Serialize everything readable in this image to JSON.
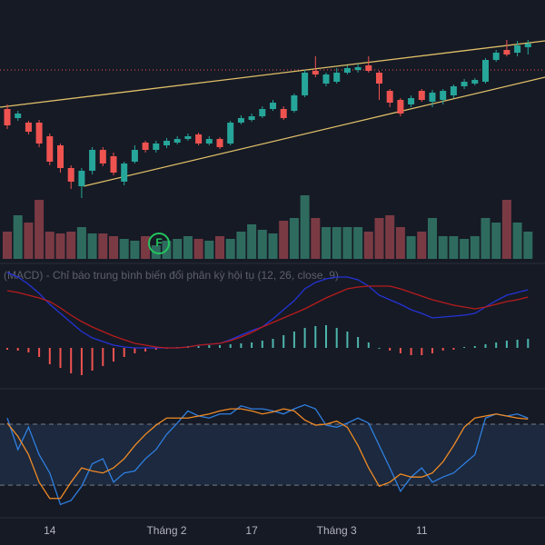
{
  "chart_data": [
    {
      "type": "candlestick",
      "up_color": "#26a69a",
      "down_color": "#ef5350",
      "ylim": [
        0,
        200
      ],
      "open": [
        110,
        100,
        95,
        95,
        80,
        70,
        45,
        25,
        42,
        65,
        58,
        30,
        52,
        73,
        65,
        70,
        73,
        77,
        82,
        72,
        77,
        72,
        95,
        98,
        102,
        110,
        110,
        108,
        125,
        152,
        138,
        140,
        150,
        153,
        158,
        150,
        130,
        120,
        115,
        130,
        118,
        120,
        125,
        135,
        138,
        140,
        164,
        175,
        172,
        178
      ],
      "high": [
        115,
        108,
        97,
        98,
        83,
        72,
        48,
        45,
        68,
        68,
        62,
        52,
        70,
        75,
        75,
        78,
        80,
        83,
        84,
        80,
        79,
        97,
        103,
        105,
        113,
        120,
        113,
        127,
        153,
        168,
        150,
        155,
        158,
        160,
        168,
        152,
        132,
        122,
        125,
        132,
        131,
        132,
        137,
        143,
        144,
        166,
        175,
        186,
        185,
        186
      ],
      "low": [
        88,
        97,
        82,
        68,
        48,
        40,
        22,
        12,
        38,
        47,
        37,
        26,
        50,
        62,
        62,
        67,
        71,
        75,
        70,
        70,
        66,
        70,
        93,
        96,
        100,
        108,
        98,
        106,
        123,
        145,
        135,
        138,
        148,
        150,
        150,
        120,
        112,
        102,
        112,
        118,
        112,
        115,
        122,
        132,
        136,
        138,
        162,
        168,
        168,
        170
      ],
      "close": [
        92,
        105,
        85,
        72,
        52,
        45,
        30,
        42,
        65,
        50,
        40,
        50,
        65,
        65,
        72,
        75,
        77,
        80,
        72,
        77,
        68,
        95,
        100,
        102,
        110,
        117,
        100,
        125,
        150,
        148,
        148,
        150,
        155,
        156,
        152,
        138,
        117,
        105,
        122,
        120,
        128,
        130,
        135,
        140,
        142,
        164,
        172,
        170,
        180,
        182
      ]
    },
    {
      "type": "bar",
      "up_color": "#2e6b5e",
      "down_color": "#7a3a44",
      "ylim": [
        0,
        75
      ],
      "annotation": "F",
      "values": [
        30,
        48,
        40,
        65,
        30,
        28,
        30,
        35,
        28,
        28,
        25,
        22,
        20,
        25,
        15,
        20,
        22,
        25,
        22,
        20,
        25,
        22,
        30,
        38,
        32,
        28,
        42,
        45,
        70,
        45,
        35,
        35,
        35,
        35,
        30,
        45,
        48,
        35,
        25,
        30,
        45,
        25,
        25,
        22,
        25,
        45,
        40,
        65,
        40,
        30
      ]
    },
    {
      "type": "macd",
      "title": "(MACD) - Chỉ báo trung bình biến đổi phân kỳ hội tụ (12, 26, close, 9)",
      "ylim": [
        -42,
        88
      ],
      "series": [
        {
          "color": "#2433d6",
          "values": [
            83,
            78,
            70,
            60,
            48,
            38,
            28,
            18,
            11,
            7,
            3,
            1,
            0,
            0,
            0,
            0,
            0,
            1,
            3,
            4,
            5,
            9,
            14,
            19,
            23,
            32,
            42,
            52,
            65,
            72,
            76,
            78,
            78,
            75,
            68,
            58,
            53,
            48,
            42,
            38,
            33,
            34,
            35,
            36,
            38,
            45,
            52,
            58,
            61,
            64
          ]
        },
        {
          "color": "#b71c1c",
          "values": [
            63,
            61,
            58,
            55,
            51,
            44,
            36,
            29,
            23,
            18,
            13,
            9,
            5,
            3,
            1,
            0,
            0,
            1,
            3,
            4,
            5,
            8,
            12,
            17,
            23,
            28,
            33,
            38,
            43,
            49,
            55,
            60,
            65,
            67,
            68,
            68,
            68,
            65,
            61,
            57,
            53,
            50,
            47,
            45,
            43,
            45,
            48,
            51,
            53,
            56
          ]
        }
      ],
      "histogram": {
        "up_color": "#4db6ac",
        "down_color": "#ef5350",
        "values": [
          -2,
          -3,
          -5,
          -10,
          -18,
          -22,
          -28,
          -30,
          -25,
          -20,
          -15,
          -10,
          -6,
          -4,
          -2,
          -1,
          1,
          2,
          2,
          3,
          3,
          4,
          5,
          6,
          8,
          10,
          14,
          18,
          22,
          24,
          25,
          22,
          18,
          12,
          6,
          0,
          -3,
          -6,
          -8,
          -8,
          -6,
          -3,
          -2,
          1,
          2,
          4,
          6,
          8,
          9,
          10
        ]
      }
    },
    {
      "type": "line",
      "ylim": [
        -12,
        113
      ],
      "levels": [
        20,
        80
      ],
      "categories": [
        null,
        null,
        null,
        null,
        "14",
        null,
        null,
        null,
        null,
        null,
        null,
        null,
        null,
        null,
        null,
        "Tháng 2",
        null,
        null,
        null,
        null,
        null,
        null,
        null,
        "17",
        null,
        null,
        null,
        null,
        null,
        null,
        null,
        "Tháng 3",
        null,
        null,
        null,
        null,
        null,
        null,
        null,
        "11",
        null,
        null,
        null,
        null,
        null,
        null,
        null,
        null,
        null,
        null
      ],
      "series": [
        {
          "color": "#2f7fe0",
          "values": [
            86,
            55,
            77,
            50,
            32,
            1,
            5,
            19,
            41,
            46,
            23,
            32,
            34,
            46,
            55,
            70,
            81,
            93,
            88,
            86,
            90,
            90,
            98,
            95,
            95,
            93,
            90,
            95,
            99,
            95,
            79,
            77,
            81,
            86,
            81,
            59,
            37,
            14,
            28,
            37,
            23,
            28,
            32,
            41,
            50,
            86,
            90,
            88,
            90,
            86
          ]
        },
        {
          "color": "#f08a24",
          "values": [
            81,
            68,
            50,
            23,
            7,
            7,
            23,
            37,
            34,
            32,
            37,
            46,
            59,
            70,
            79,
            86,
            86,
            86,
            88,
            90,
            93,
            95,
            95,
            93,
            90,
            92,
            95,
            93,
            84,
            79,
            80,
            83,
            77,
            59,
            37,
            19,
            23,
            31,
            28,
            28,
            32,
            43,
            59,
            77,
            86,
            88,
            90,
            88,
            86,
            85
          ]
        }
      ]
    }
  ]
}
